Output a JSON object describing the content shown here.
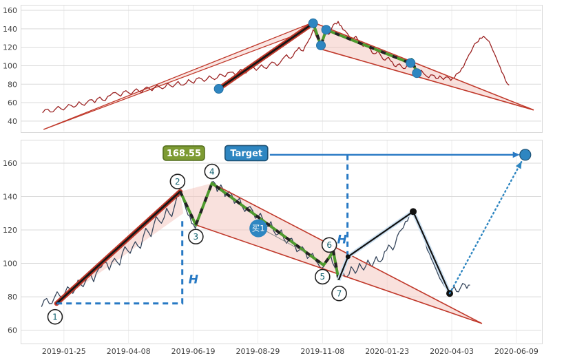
{
  "page": {
    "background": "#ffffff"
  },
  "colors": {
    "grid": "#d9d9d9",
    "grid_light": "#ededed",
    "axis_text": "#3f3f3f",
    "trend_red": "#c0392b",
    "wedge_fill": "#f3c3bb",
    "impulse_core": "#161616",
    "zigzag_green": "#4e9a2e",
    "zigzag_dash": "#222222",
    "blue": "#2779c4",
    "dot_blue": "#2e86c1",
    "dot_blue_edge": "#1b4f72",
    "black": "#111111",
    "projection_casing": "#cfe3f3",
    "point_circle_stroke": "#1f1f1f",
    "point_num": "#0e5f6e",
    "badge_green_bg": "#7d9b33",
    "badge_green_border": "#55701f",
    "badge_blue_bg": "#2e86c1",
    "badge_blue_border": "#1b4f72",
    "buy_bg": "#2e86c1",
    "pointer_gray": "#8a8a8a"
  },
  "chart_data": [
    {
      "id": "top-pattern-chart",
      "type": "line",
      "title": "",
      "ylim": [
        28,
        166
      ],
      "y_ticks": [
        40,
        60,
        80,
        100,
        120,
        140,
        160
      ],
      "x_grid_pos": [
        0.083,
        0.207,
        0.331,
        0.455,
        0.579,
        0.703,
        0.827,
        0.951
      ],
      "price_color": "#9b2222",
      "price_series": [
        [
          0.042,
          49
        ],
        [
          0.052,
          53
        ],
        [
          0.062,
          50
        ],
        [
          0.072,
          56
        ],
        [
          0.082,
          52
        ],
        [
          0.092,
          58
        ],
        [
          0.102,
          55
        ],
        [
          0.112,
          61
        ],
        [
          0.122,
          57
        ],
        [
          0.132,
          63
        ],
        [
          0.142,
          60
        ],
        [
          0.152,
          66
        ],
        [
          0.162,
          62
        ],
        [
          0.172,
          68
        ],
        [
          0.182,
          71
        ],
        [
          0.192,
          67
        ],
        [
          0.202,
          73
        ],
        [
          0.212,
          69
        ],
        [
          0.222,
          75
        ],
        [
          0.232,
          71
        ],
        [
          0.242,
          77
        ],
        [
          0.252,
          73
        ],
        [
          0.262,
          79
        ],
        [
          0.272,
          75
        ],
        [
          0.282,
          81
        ],
        [
          0.292,
          77
        ],
        [
          0.302,
          83
        ],
        [
          0.312,
          79
        ],
        [
          0.322,
          85
        ],
        [
          0.332,
          81
        ],
        [
          0.342,
          87
        ],
        [
          0.352,
          83
        ],
        [
          0.362,
          89
        ],
        [
          0.372,
          85
        ],
        [
          0.382,
          91
        ],
        [
          0.392,
          88
        ],
        [
          0.402,
          93
        ],
        [
          0.412,
          90
        ],
        [
          0.422,
          96
        ],
        [
          0.432,
          92
        ],
        [
          0.442,
          98
        ],
        [
          0.452,
          95
        ],
        [
          0.462,
          101
        ],
        [
          0.472,
          97
        ],
        [
          0.482,
          104
        ],
        [
          0.492,
          100
        ],
        [
          0.502,
          107
        ],
        [
          0.51,
          112
        ],
        [
          0.518,
          108
        ],
        [
          0.526,
          115
        ],
        [
          0.534,
          120
        ],
        [
          0.542,
          116
        ],
        [
          0.55,
          125
        ],
        [
          0.556,
          131
        ],
        [
          0.561,
          139
        ],
        [
          0.566,
          133
        ],
        [
          0.571,
          127
        ],
        [
          0.576,
          122
        ],
        [
          0.581,
          130
        ],
        [
          0.586,
          138
        ],
        [
          0.591,
          134
        ],
        [
          0.597,
          141
        ],
        [
          0.603,
          146
        ],
        [
          0.609,
          148
        ],
        [
          0.615,
          143
        ],
        [
          0.622,
          138
        ],
        [
          0.629,
          133
        ],
        [
          0.636,
          129
        ],
        [
          0.643,
          132
        ],
        [
          0.65,
          126
        ],
        [
          0.657,
          121
        ],
        [
          0.664,
          124
        ],
        [
          0.671,
          118
        ],
        [
          0.678,
          113
        ],
        [
          0.685,
          116
        ],
        [
          0.692,
          110
        ],
        [
          0.699,
          106
        ],
        [
          0.706,
          109
        ],
        [
          0.713,
          104
        ],
        [
          0.72,
          99
        ],
        [
          0.727,
          102
        ],
        [
          0.734,
          97
        ],
        [
          0.741,
          100
        ],
        [
          0.748,
          103
        ],
        [
          0.755,
          98
        ],
        [
          0.762,
          92
        ],
        [
          0.769,
          95
        ],
        [
          0.776,
          90
        ],
        [
          0.783,
          87
        ],
        [
          0.79,
          90
        ],
        [
          0.797,
          86
        ],
        [
          0.804,
          89
        ],
        [
          0.811,
          85
        ],
        [
          0.818,
          88
        ],
        [
          0.825,
          84
        ],
        [
          0.832,
          87
        ],
        [
          0.839,
          92
        ],
        [
          0.846,
          97
        ],
        [
          0.853,
          104
        ],
        [
          0.86,
          112
        ],
        [
          0.867,
          119
        ],
        [
          0.874,
          125
        ],
        [
          0.881,
          130
        ],
        [
          0.888,
          132
        ],
        [
          0.895,
          128
        ],
        [
          0.902,
          122
        ],
        [
          0.909,
          113
        ],
        [
          0.916,
          103
        ],
        [
          0.923,
          93
        ],
        [
          0.93,
          84
        ],
        [
          0.937,
          79
        ]
      ],
      "channel_lines": [
        [
          [
            0.044,
            31
          ],
          [
            0.561,
            147
          ]
        ],
        [
          [
            0.044,
            31
          ],
          [
            0.545,
            137
          ]
        ]
      ],
      "channel_fill": [
        [
          0.044,
          31
        ],
        [
          0.561,
          147
        ],
        [
          0.545,
          137
        ]
      ],
      "wedge_lines": [
        [
          [
            0.561,
            147
          ],
          [
            0.984,
            52
          ]
        ],
        [
          [
            0.576,
            118
          ],
          [
            0.984,
            52
          ]
        ]
      ],
      "wedge_fill": [
        [
          0.561,
          147
        ],
        [
          0.984,
          52
        ],
        [
          0.576,
          118
        ]
      ],
      "impulse_line": [
        [
          0.38,
          75
        ],
        [
          0.561,
          146
        ]
      ],
      "zigzag": [
        [
          0.561,
          146
        ],
        [
          0.576,
          122
        ],
        [
          0.586,
          139
        ],
        [
          0.742,
          104
        ],
        [
          0.75,
          107
        ],
        [
          0.76,
          92
        ]
      ],
      "pattern_dots": [
        [
          0.38,
          75
        ],
        [
          0.561,
          146
        ],
        [
          0.576,
          122
        ],
        [
          0.586,
          139
        ],
        [
          0.748,
          103
        ],
        [
          0.76,
          92
        ]
      ]
    },
    {
      "id": "bottom-analysis-chart",
      "type": "line",
      "title": "",
      "ylim": [
        52,
        174
      ],
      "y_ticks": [
        60,
        80,
        100,
        120,
        140,
        160
      ],
      "x_grid_pos": [
        0.083,
        0.207,
        0.331,
        0.455,
        0.579,
        0.703,
        0.827,
        0.951
      ],
      "x_tick_labels": [
        "2019-01-25",
        "2019-04-08",
        "2019-06-19",
        "2019-08-29",
        "2019-11-08",
        "2020-01-23",
        "2020-04-03",
        "2020-06-09"
      ],
      "price_color": "#35455b",
      "price_series": [
        [
          0.04,
          74
        ],
        [
          0.05,
          79
        ],
        [
          0.06,
          76
        ],
        [
          0.07,
          83
        ],
        [
          0.08,
          79
        ],
        [
          0.09,
          86
        ],
        [
          0.1,
          82
        ],
        [
          0.11,
          90
        ],
        [
          0.12,
          86
        ],
        [
          0.13,
          93
        ],
        [
          0.14,
          89
        ],
        [
          0.15,
          97
        ],
        [
          0.16,
          101
        ],
        [
          0.17,
          96
        ],
        [
          0.18,
          103
        ],
        [
          0.19,
          99
        ],
        [
          0.2,
          110
        ],
        [
          0.21,
          106
        ],
        [
          0.22,
          113
        ],
        [
          0.23,
          109
        ],
        [
          0.24,
          121
        ],
        [
          0.25,
          116
        ],
        [
          0.26,
          128
        ],
        [
          0.27,
          124
        ],
        [
          0.28,
          133
        ],
        [
          0.29,
          128
        ],
        [
          0.3,
          140
        ],
        [
          0.307,
          144
        ],
        [
          0.314,
          136
        ],
        [
          0.321,
          129
        ],
        [
          0.328,
          124
        ],
        [
          0.335,
          121
        ],
        [
          0.342,
          128
        ],
        [
          0.349,
          134
        ],
        [
          0.356,
          140
        ],
        [
          0.363,
          145
        ],
        [
          0.37,
          149
        ],
        [
          0.377,
          143
        ],
        [
          0.384,
          147
        ],
        [
          0.392,
          140
        ],
        [
          0.4,
          143
        ],
        [
          0.41,
          136
        ],
        [
          0.42,
          139
        ],
        [
          0.43,
          131
        ],
        [
          0.44,
          134
        ],
        [
          0.45,
          127
        ],
        [
          0.46,
          130
        ],
        [
          0.47,
          122
        ],
        [
          0.48,
          125
        ],
        [
          0.49,
          117
        ],
        [
          0.5,
          120
        ],
        [
          0.51,
          112
        ],
        [
          0.52,
          115
        ],
        [
          0.53,
          107
        ],
        [
          0.54,
          110
        ],
        [
          0.55,
          103
        ],
        [
          0.56,
          106
        ],
        [
          0.57,
          100
        ],
        [
          0.578,
          97
        ],
        [
          0.586,
          102
        ],
        [
          0.594,
          106
        ],
        [
          0.602,
          98
        ],
        [
          0.61,
          91
        ],
        [
          0.618,
          95
        ],
        [
          0.626,
          92
        ],
        [
          0.634,
          98
        ],
        [
          0.642,
          94
        ],
        [
          0.65,
          100
        ],
        [
          0.658,
          96
        ],
        [
          0.666,
          102
        ],
        [
          0.674,
          98
        ],
        [
          0.682,
          104
        ],
        [
          0.69,
          101
        ],
        [
          0.698,
          107
        ],
        [
          0.706,
          111
        ],
        [
          0.714,
          108
        ],
        [
          0.722,
          116
        ],
        [
          0.73,
          120
        ],
        [
          0.738,
          125
        ],
        [
          0.746,
          129
        ],
        [
          0.753,
          131
        ],
        [
          0.76,
          126
        ],
        [
          0.768,
          120
        ],
        [
          0.776,
          113
        ],
        [
          0.784,
          106
        ],
        [
          0.792,
          100
        ],
        [
          0.8,
          94
        ],
        [
          0.808,
          89
        ],
        [
          0.816,
          85
        ],
        [
          0.824,
          81
        ],
        [
          0.832,
          86
        ],
        [
          0.84,
          83
        ],
        [
          0.848,
          88
        ],
        [
          0.856,
          85
        ],
        [
          0.862,
          87
        ]
      ],
      "band_fill": [
        [
          0.069,
          76
        ],
        [
          0.306,
          143
        ],
        [
          0.312,
          130
        ]
      ],
      "wedge_lines": [
        [
          [
            0.367,
            148
          ],
          [
            0.885,
            64
          ]
        ],
        [
          [
            0.336,
            123
          ],
          [
            0.885,
            64
          ]
        ]
      ],
      "wedge_fill": [
        [
          0.306,
          143
        ],
        [
          0.367,
          148
        ],
        [
          0.885,
          64
        ],
        [
          0.336,
          123
        ]
      ],
      "impulse_line": [
        [
          0.069,
          76
        ],
        [
          0.306,
          143
        ]
      ],
      "zigzag": [
        [
          0.306,
          143
        ],
        [
          0.336,
          123
        ],
        [
          0.367,
          148
        ],
        [
          0.581,
          99
        ],
        [
          0.6,
          107
        ],
        [
          0.61,
          90
        ]
      ],
      "points": [
        {
          "n": "1",
          "at": [
            0.066,
            68
          ]
        },
        {
          "n": "2",
          "at": [
            0.301,
            149
          ]
        },
        {
          "n": "3",
          "at": [
            0.336,
            116
          ]
        },
        {
          "n": "4",
          "at": [
            0.367,
            155
          ]
        },
        {
          "n": "5",
          "at": [
            0.579,
            92
          ]
        },
        {
          "n": "6",
          "at": [
            0.592,
            111
          ]
        },
        {
          "n": "7",
          "at": [
            0.611,
            82
          ]
        }
      ],
      "measures": [
        {
          "pts": [
            [
              0.069,
              76
            ],
            [
              0.31,
              76
            ],
            [
              0.31,
              127
            ]
          ],
          "label": "H",
          "label_at": [
            0.322,
            88
          ]
        },
        {
          "pts": [
            [
              0.627,
              104
            ],
            [
              0.627,
              165
            ]
          ],
          "label": "H",
          "label_at": [
            0.607,
            112
          ]
        }
      ],
      "projection": {
        "pts": [
          [
            0.61,
            90
          ],
          [
            0.628,
            104
          ],
          [
            0.753,
            131
          ],
          [
            0.823,
            82
          ]
        ],
        "kink_dots": [
          [
            0.628,
            104
          ]
        ],
        "dots": [
          [
            0.753,
            131
          ],
          [
            0.823,
            82
          ]
        ]
      },
      "target": {
        "arrow_from_x": 0.478,
        "arrow_y": 165,
        "dot": [
          0.968,
          165
        ],
        "dotted_from": [
          0.823,
          82
        ]
      },
      "badges": [
        {
          "text": "168.55",
          "cx": 0.313,
          "cy": 166,
          "w": 60,
          "h": 21,
          "bg": "#7d9b33",
          "border": "#55701f",
          "color": "#ffffff"
        },
        {
          "text": "Target",
          "cx": 0.433,
          "cy": 166,
          "w": 62,
          "h": 22,
          "bg": "#2e86c1",
          "border": "#1b4f72",
          "color": "#ffffff"
        }
      ],
      "buy_marker": {
        "text": "买1",
        "at": [
          0.456,
          121
        ],
        "r": 13,
        "pointer_to": [
          0.543,
          107
        ]
      }
    }
  ]
}
